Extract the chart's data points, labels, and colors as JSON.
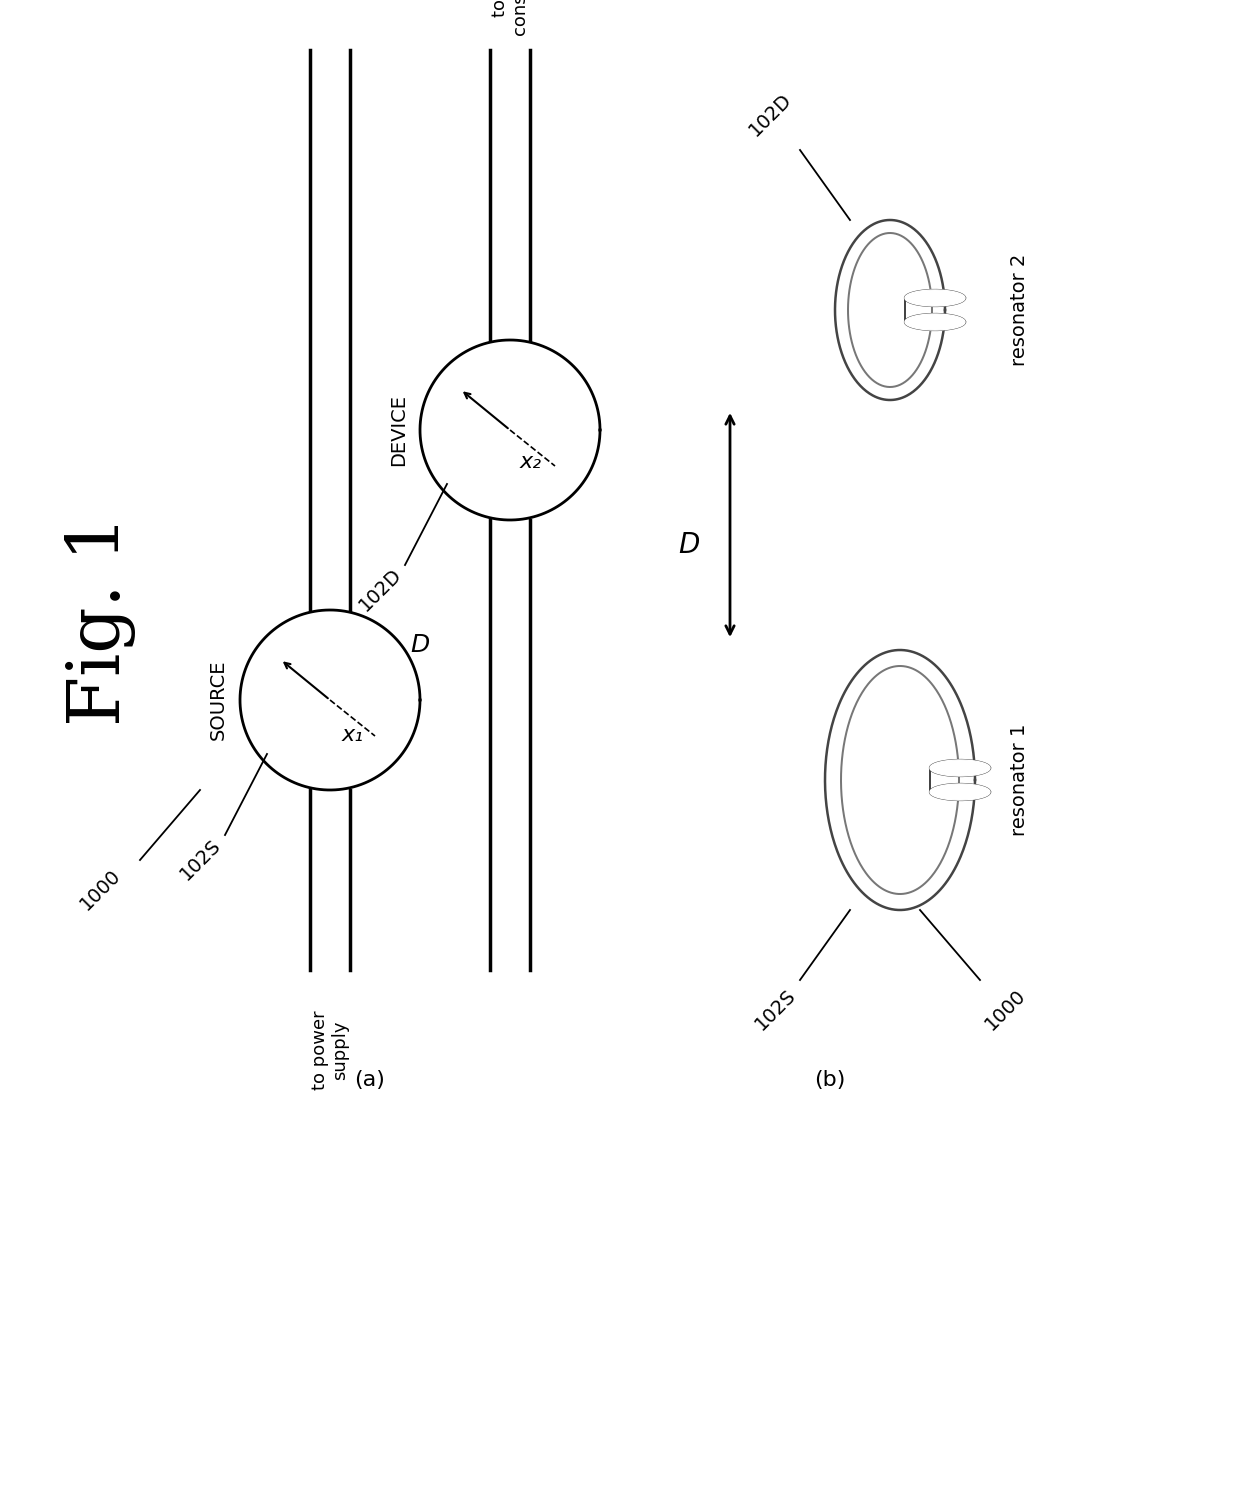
{
  "fig_label": "Fig. 1",
  "bg_color": "#ffffff",
  "panel_a_label": "(a)",
  "panel_b_label": "(b)",
  "source_label": "SOURCE",
  "device_label": "DEVICE",
  "source_resonator_label": "102S",
  "device_resonator_label": "102D",
  "system_label": "1000",
  "resonator1_label": "resonator 1",
  "resonator2_label": "resonator 2",
  "distance_label": "D",
  "x1_label": "x₁",
  "x2_label": "x₂",
  "power_supply_label": "to power\nsupply",
  "power_consumption_label": "to power\nconsumption",
  "lw_wire": 2.5,
  "lw_circle": 2.0,
  "lw_arrow": 1.5,
  "text_color": "#000000",
  "dark_gray": "#444444",
  "mid_gray": "#777777",
  "light_gray": "#aaaaaa"
}
